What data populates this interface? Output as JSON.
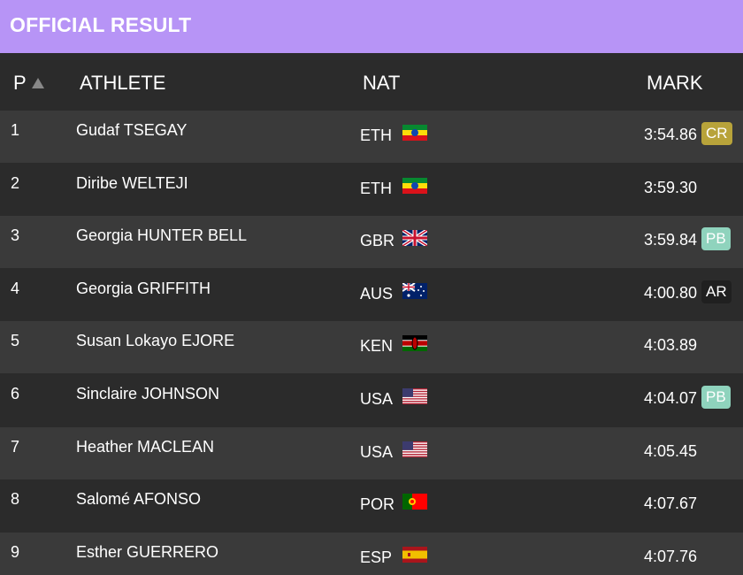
{
  "header": {
    "title": "OFFICIAL RESULT"
  },
  "table": {
    "columns": [
      "P",
      "ATHLETE",
      "NAT",
      "MARK"
    ],
    "rows": [
      {
        "p": "1",
        "athlete": "Gudaf TSEGAY",
        "nat": "ETH",
        "mark": "3:54.86",
        "badge": "CR"
      },
      {
        "p": "2",
        "athlete": "Diribe WELTEJI",
        "nat": "ETH",
        "mark": "3:59.30"
      },
      {
        "p": "3",
        "athlete": "Georgia HUNTER BELL",
        "nat": "GBR",
        "mark": "3:59.84",
        "badge": "PB"
      },
      {
        "p": "4",
        "athlete": "Georgia GRIFFITH",
        "nat": "AUS",
        "mark": "4:00.80",
        "badge": "AR"
      },
      {
        "p": "5",
        "athlete": "Susan Lokayo EJORE",
        "nat": "KEN",
        "mark": "4:03.89"
      },
      {
        "p": "6",
        "athlete": "Sinclaire JOHNSON",
        "nat": "USA",
        "mark": "4:04.07",
        "badge": "PB"
      },
      {
        "p": "7",
        "athlete": "Heather MACLEAN",
        "nat": "USA",
        "mark": "4:05.45"
      },
      {
        "p": "8",
        "athlete": "Salomé AFONSO",
        "nat": "POR",
        "mark": "4:07.67"
      },
      {
        "p": "9",
        "athlete": "Esther GUERRERO",
        "nat": "ESP",
        "mark": "4:07.76"
      }
    ]
  }
}
